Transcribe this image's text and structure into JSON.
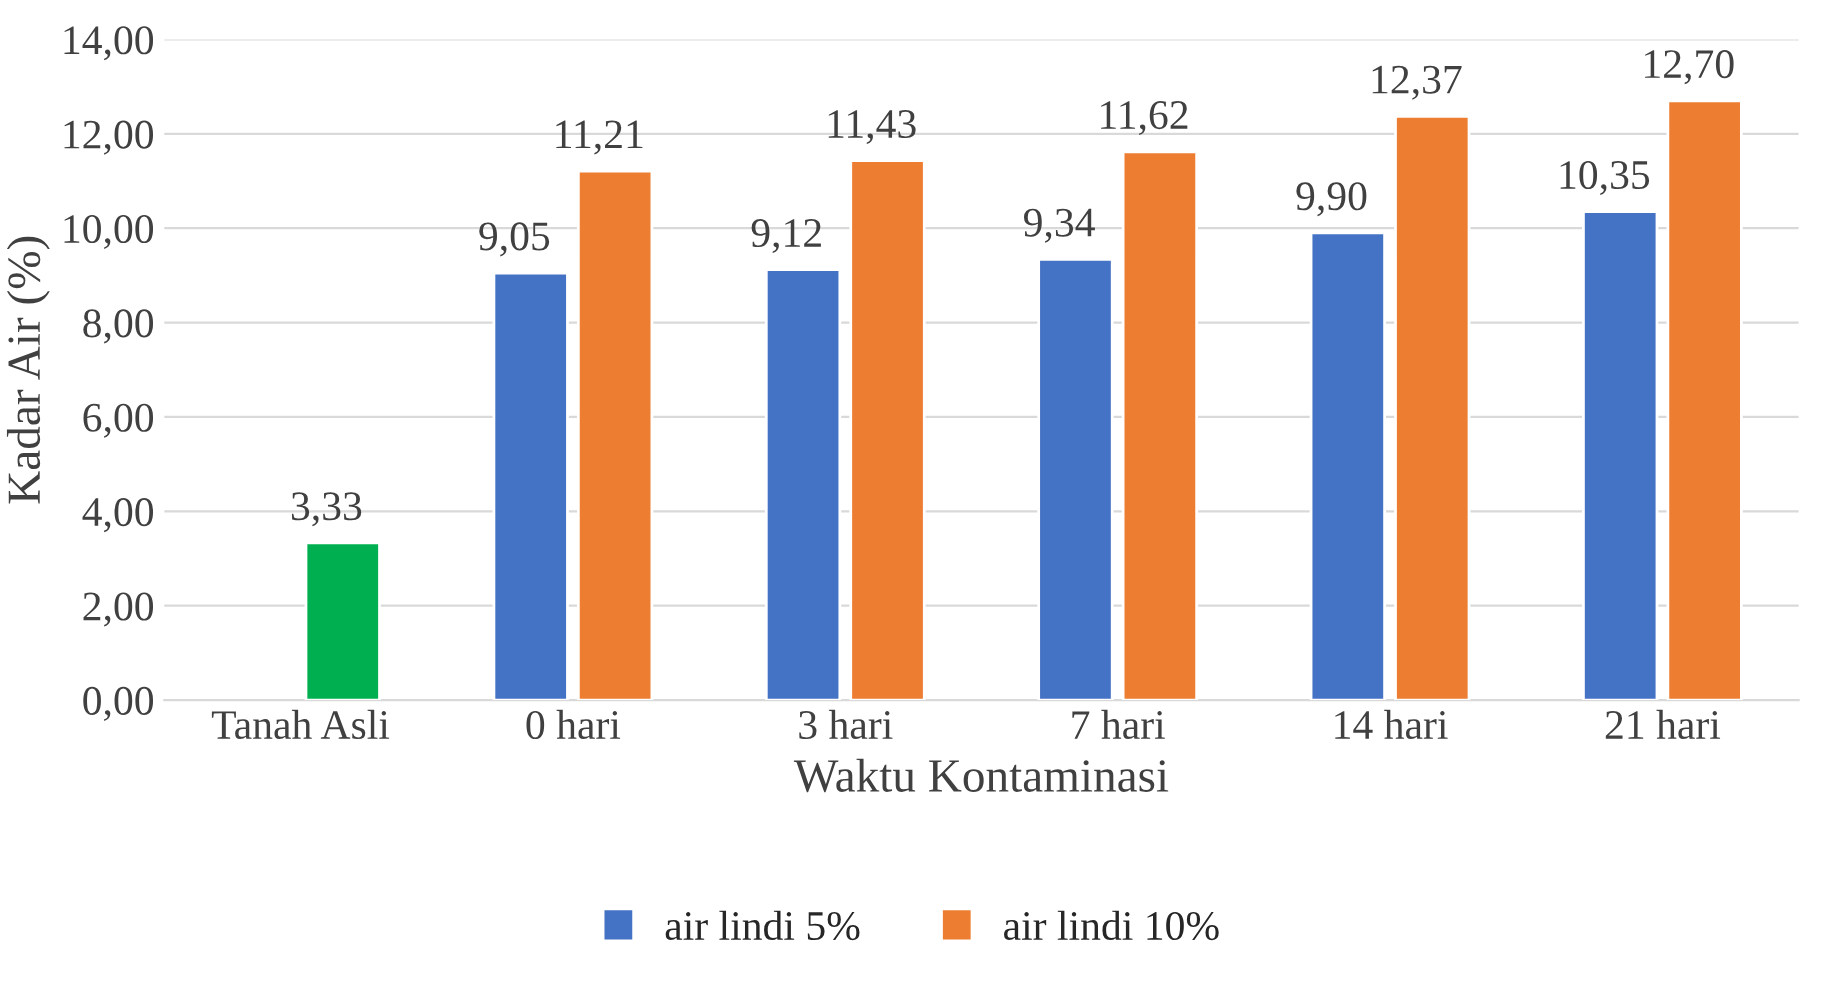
{
  "chart_data": {
    "type": "bar",
    "xlabel": "Waktu Kontaminasi",
    "ylabel": "Kadar Air (%)",
    "categories": [
      "Tanah Asli",
      "0 hari",
      "3 hari",
      "7 hari",
      "14 hari",
      "21 hari"
    ],
    "series": [
      {
        "name": "air lindi 5%",
        "color": "#4472c4",
        "values": [
          null,
          9.05,
          9.12,
          9.34,
          9.9,
          10.35
        ],
        "value_labels": [
          null,
          "9,05",
          "9,12",
          "9,34",
          "9,90",
          "10,35"
        ]
      },
      {
        "name": "air lindi 10%",
        "color": "#ed7d31",
        "colors": [
          "#00b050",
          "#ed7d31",
          "#ed7d31",
          "#ed7d31",
          "#ed7d31",
          "#ed7d31"
        ],
        "values": [
          3.33,
          11.21,
          11.43,
          11.62,
          12.37,
          12.7
        ],
        "value_labels": [
          "3,33",
          "11,21",
          "11,43",
          "11,62",
          "12,37",
          "12,70"
        ]
      }
    ],
    "ylim": [
      0,
      14
    ],
    "yticks": [
      {
        "value": 0,
        "label": "0,00"
      },
      {
        "value": 2,
        "label": "2,00"
      },
      {
        "value": 4,
        "label": "4,00"
      },
      {
        "value": 6,
        "label": "6,00"
      },
      {
        "value": 8,
        "label": "8,00"
      },
      {
        "value": 10,
        "label": "10,00"
      },
      {
        "value": 12,
        "label": "12,00"
      },
      {
        "value": 14,
        "label": "14,00"
      }
    ],
    "grid": "y",
    "legend": "bottom"
  }
}
